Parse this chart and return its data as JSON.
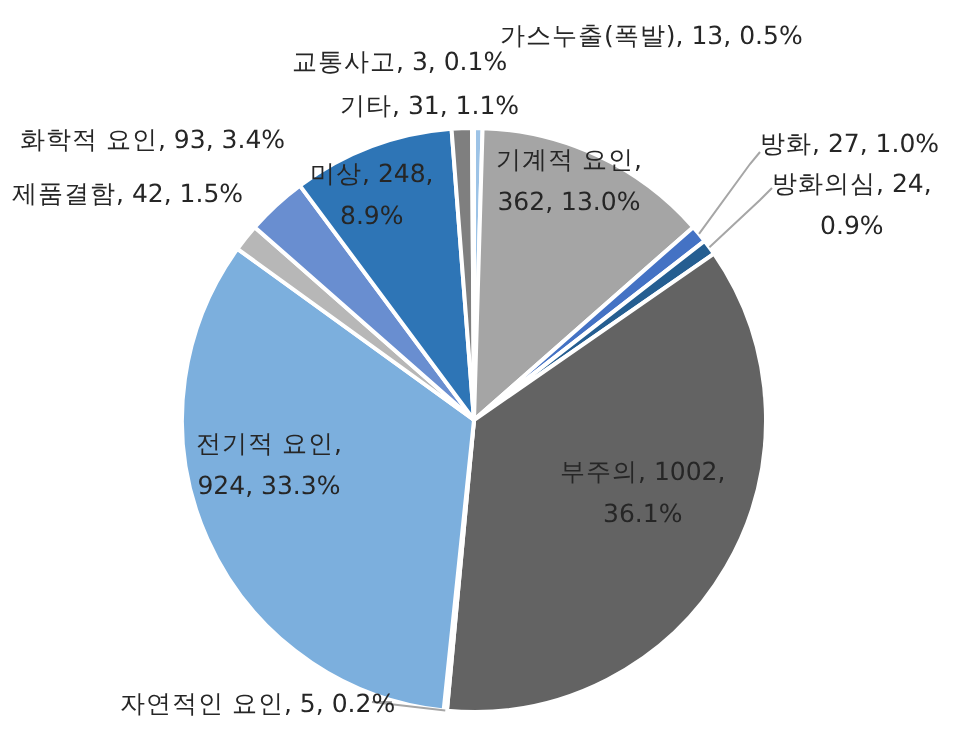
{
  "chart_data": {
    "type": "pie",
    "categories": [
      "가스누출(폭발)",
      "기계적 요인",
      "방화",
      "방화의심",
      "부주의",
      "자연적인 요인",
      "전기적 요인",
      "제품결함",
      "화학적 요인",
      "미상",
      "기타",
      "교통사고"
    ],
    "values": [
      13,
      362,
      27,
      24,
      1002,
      5,
      924,
      42,
      93,
      248,
      31,
      3
    ],
    "colors": [
      "#9dc3e6",
      "#a5a5a5",
      "#4472c4",
      "#255e91",
      "#636363",
      "#264478",
      "#7cafdd",
      "#b7b7b7",
      "#698ed0",
      "#2e75b6",
      "#7f7f7f",
      "#e7e6e6"
    ],
    "value_labels": [
      ", 13, 0.5%",
      ", 362, 13.0%",
      ", 27, 1.0%",
      ", 24, 0.9%",
      ", 1002, 36.1%",
      ", 5, 0.2%",
      ", 924, 33.3%",
      ", 42, 1.5%",
      ", 93, 3.4%",
      ", 248, 8.9%",
      ", 31, 1.1%",
      ", 3, 0.1%"
    ],
    "legend": false
  }
}
